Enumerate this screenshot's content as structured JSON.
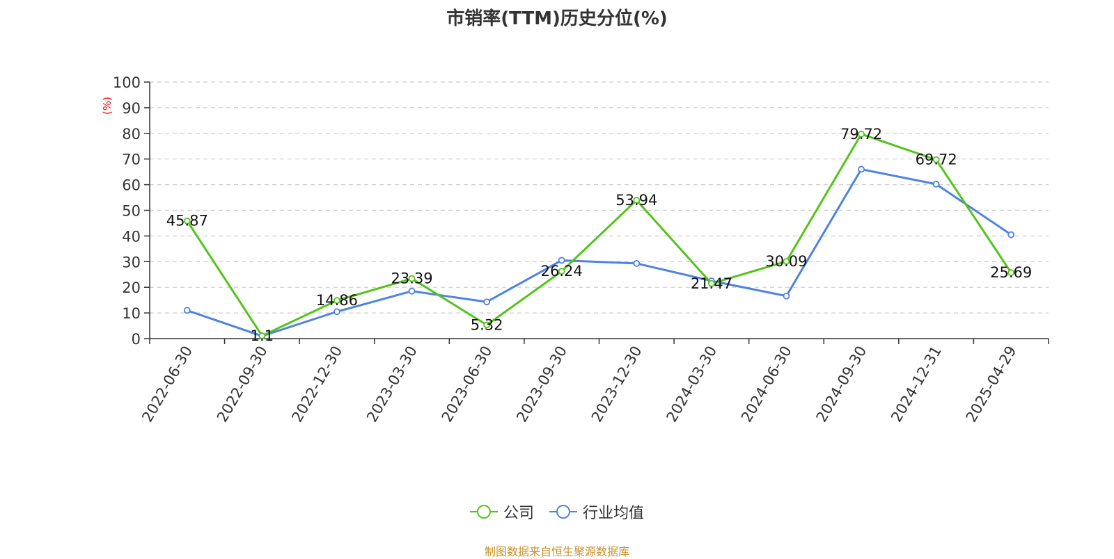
{
  "chart_data": {
    "type": "line",
    "title": "市销率(TTM)历史分位(%)",
    "ylabel": "(%)",
    "ylim": [
      0,
      100
    ],
    "yticks": [
      0,
      10,
      20,
      30,
      40,
      50,
      60,
      70,
      80,
      90,
      100
    ],
    "grid": true,
    "legend_position": "bottom",
    "categories": [
      "2022-06-30",
      "2022-09-30",
      "2022-12-30",
      "2023-03-30",
      "2023-06-30",
      "2023-09-30",
      "2023-12-30",
      "2024-03-30",
      "2024-06-30",
      "2024-09-30",
      "2024-12-31",
      "2025-04-29"
    ],
    "series": [
      {
        "name": "公司",
        "color": "#52c41a",
        "values": [
          45.87,
          1.1,
          14.86,
          23.39,
          5.32,
          26.24,
          53.94,
          21.47,
          30.09,
          79.72,
          69.72,
          25.69
        ],
        "labels": [
          "45.87",
          "1.1",
          "14.86",
          "23.39",
          "5.32",
          "26.24",
          "53.94",
          "21.47",
          "30.09",
          "79.72",
          "69.72",
          "25.69"
        ]
      },
      {
        "name": "行业均值",
        "color": "#4e83de",
        "values": [
          11,
          1,
          10.5,
          18.5,
          14.3,
          30.5,
          29.3,
          22.5,
          16.6,
          66,
          60.2,
          40.5
        ]
      }
    ],
    "source": "制图数据来自恒生聚源数据库"
  }
}
